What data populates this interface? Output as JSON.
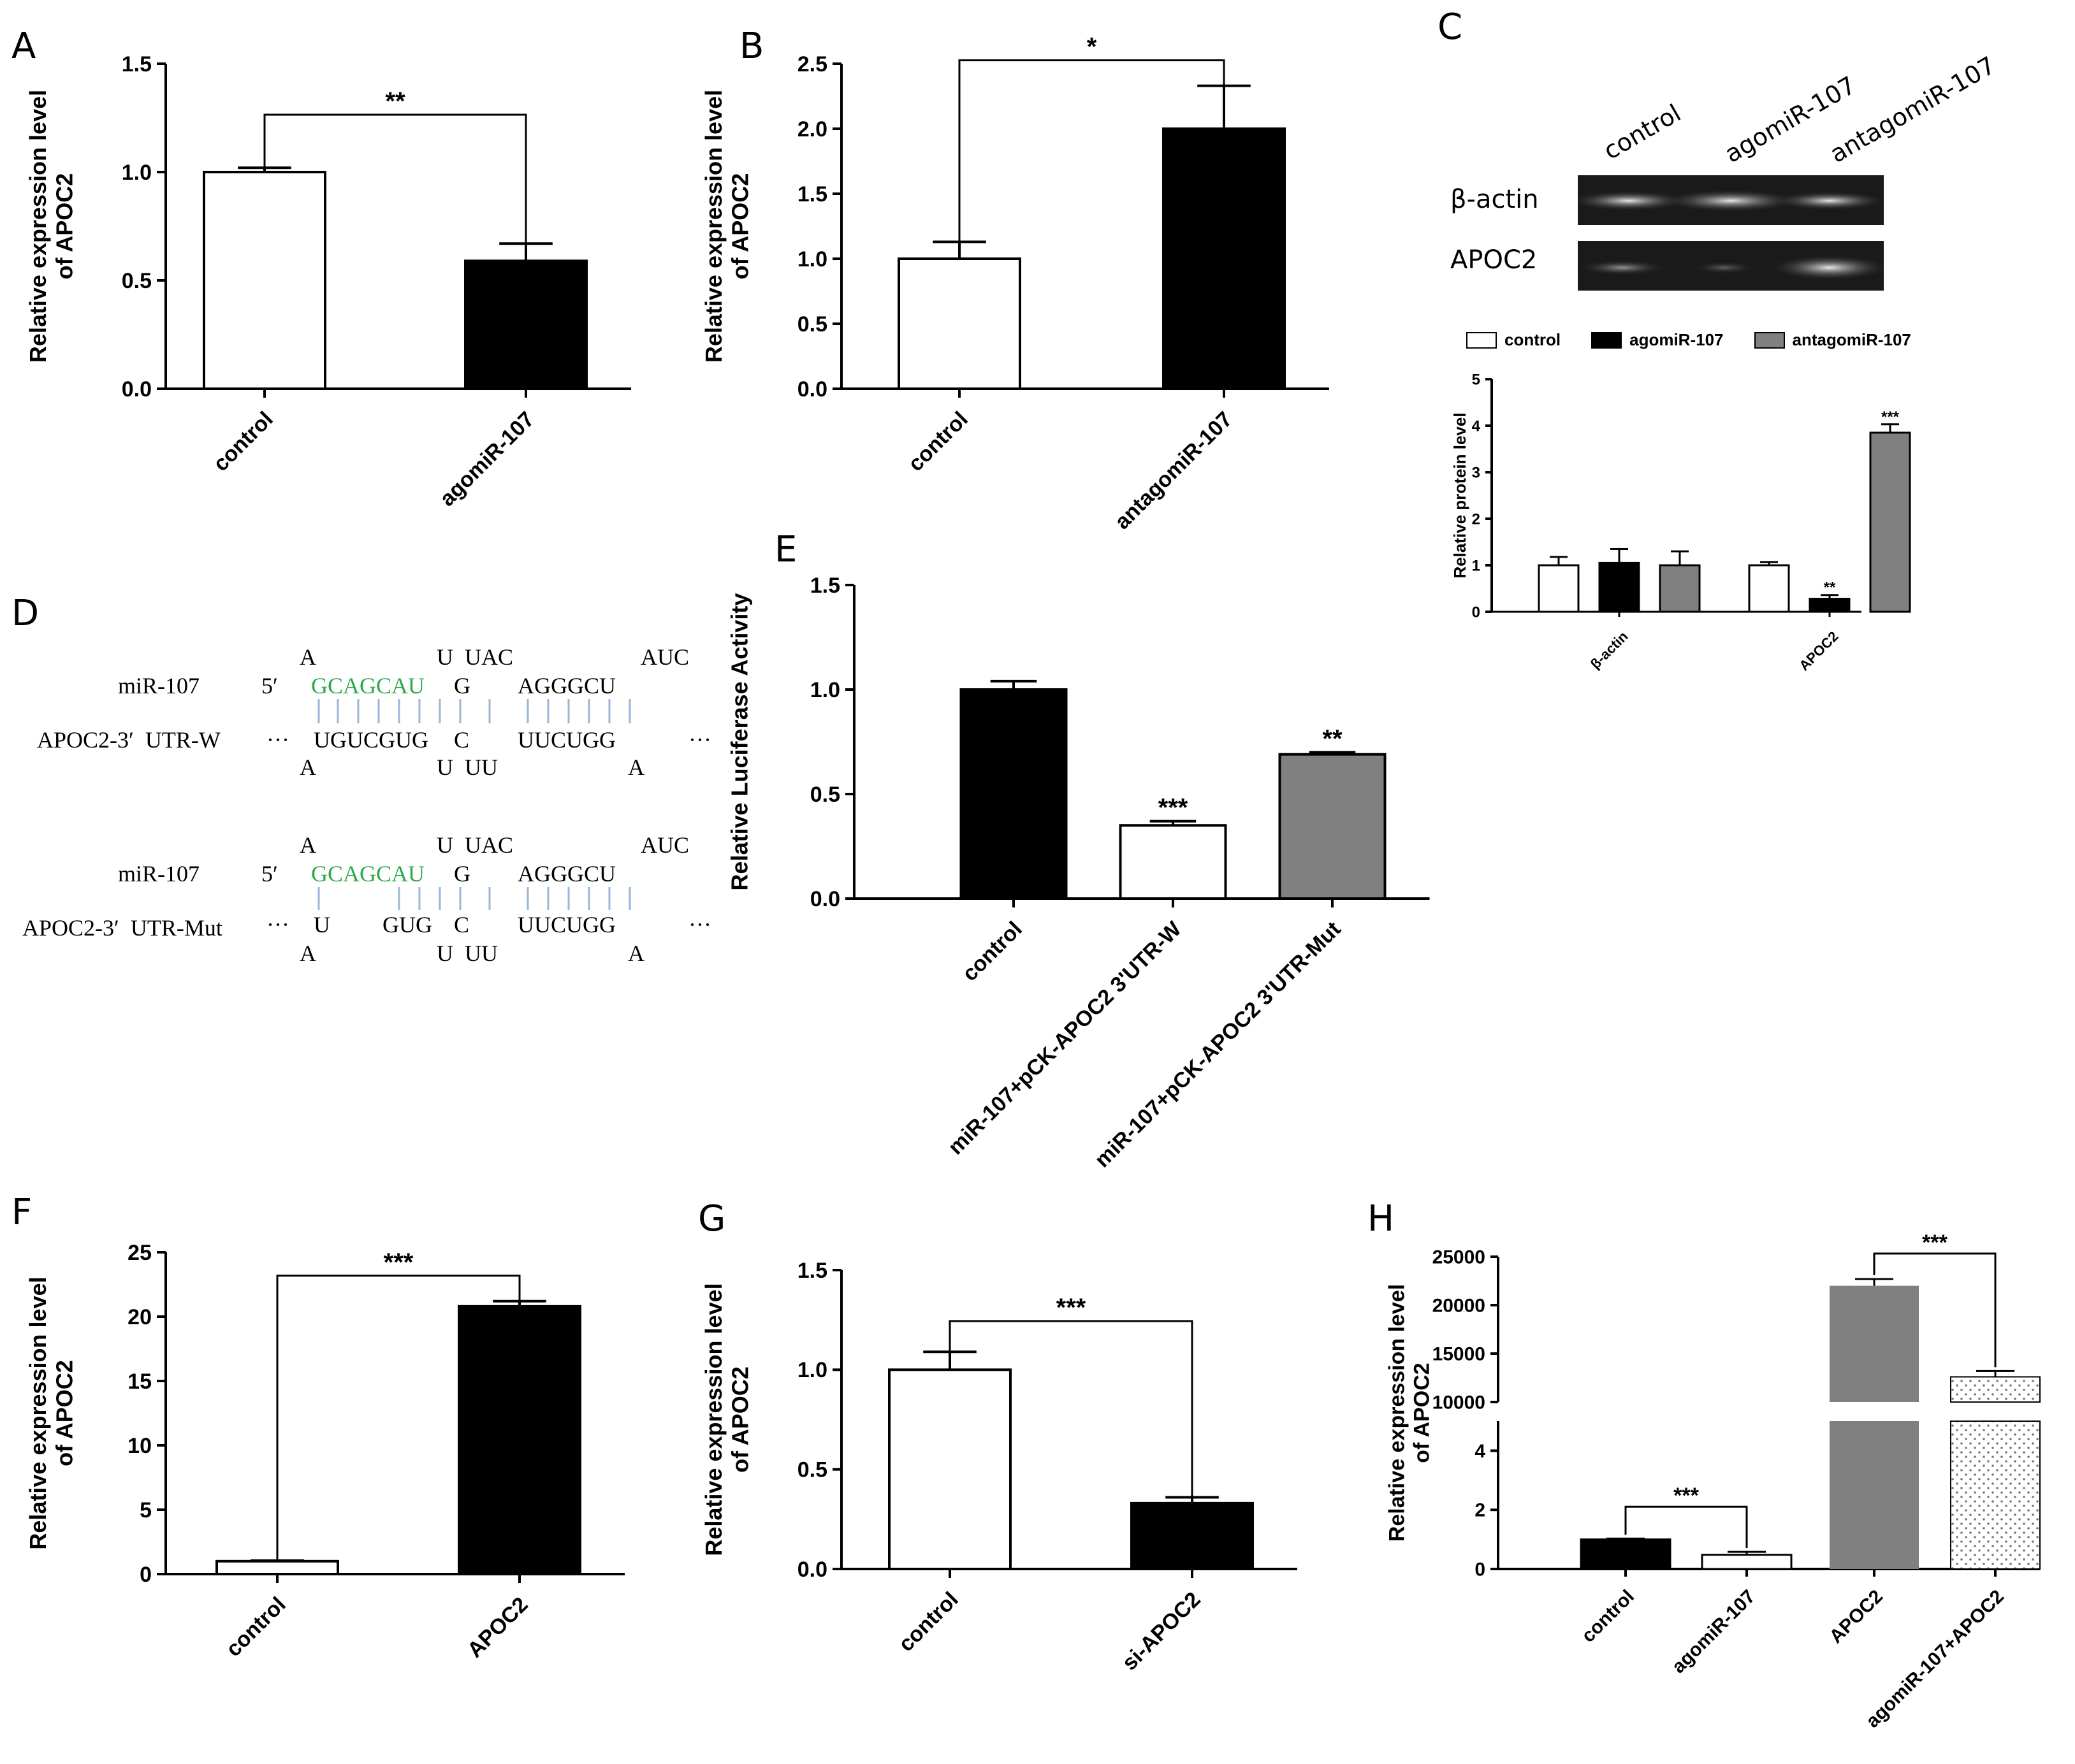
{
  "panel_labels": {
    "A": "A",
    "B": "B",
    "C": "C",
    "D": "D",
    "E": "E",
    "F": "F",
    "G": "G",
    "H": "H"
  },
  "colors": {
    "black": "#000000",
    "white": "#ffffff",
    "gray": "#808080",
    "seq_green": "#2aaa4a",
    "pair_blue": "#9ab6d8"
  },
  "blot": {
    "lanes": [
      "control",
      "agomiR-107",
      "antagomiR-107"
    ],
    "rows": [
      "β-actin",
      "APOC2"
    ]
  },
  "sequences": {
    "w": {
      "mir_label": "miR-107",
      "utr_label": "APOC2-3′  UTR-W",
      "five_prime": "5′",
      "top_bulge_1": "A",
      "top_bulge_2": "U  UAC",
      "top_bulge_3": "AUC",
      "mir_seed": "GCAGCAU",
      "mir_rest_1": "G",
      "mir_rest_2": "AGGGCU",
      "utr_1": "UGUCGUG",
      "utr_2": "C",
      "utr_3": "UUCUGG",
      "ellipsis_left": "···",
      "ellipsis_right": "···",
      "bot_bulge_1": "A",
      "bot_bulge_2": "U  UU",
      "bot_bulge_3": "A"
    },
    "mut": {
      "mir_label": "miR-107",
      "utr_label": "APOC2-3′  UTR-Mut",
      "five_prime": "5′",
      "top_bulge_1": "A",
      "top_bulge_2": "U  UAC",
      "top_bulge_3": "AUC",
      "mir_seed": "GCAGCAU",
      "mir_rest_1": "G",
      "mir_rest_2": "AGGGCU",
      "utr_0": "U",
      "utr_1": "GUG",
      "utr_2": "C",
      "utr_3": "UUCUGG",
      "ellipsis_left": "···",
      "ellipsis_right": "···",
      "bot_bulge_1": "A",
      "bot_bulge_2": "U  UU",
      "bot_bulge_3": "A"
    }
  },
  "chart_data": [
    {
      "id": "A",
      "type": "bar",
      "ylabel": "Relative expression level\nof APOC2",
      "categories": [
        "control",
        "agomiR-107"
      ],
      "values": [
        1.0,
        0.59
      ],
      "errors": [
        0.02,
        0.08
      ],
      "fills": [
        "white",
        "black"
      ],
      "ylim": [
        0,
        1.5
      ],
      "yticks": [
        "0.0",
        "0.5",
        "1.0",
        "1.5"
      ],
      "sig": {
        "from": 0,
        "to": 1,
        "label": "**"
      }
    },
    {
      "id": "B",
      "type": "bar",
      "ylabel": "Relative expression level\nof APOC2",
      "categories": [
        "control",
        "antagomiR-107"
      ],
      "values": [
        1.0,
        2.0
      ],
      "errors": [
        0.13,
        0.33
      ],
      "fills": [
        "white",
        "black"
      ],
      "ylim": [
        0,
        2.5
      ],
      "yticks": [
        "0.0",
        "0.5",
        "1.0",
        "1.5",
        "2.0",
        "2.5"
      ],
      "sig": {
        "from": 0,
        "to": 1,
        "label": "*"
      }
    },
    {
      "id": "C",
      "type": "bar",
      "ylabel": "Relative protein level",
      "groups": [
        "β-actin",
        "APOC2"
      ],
      "series": [
        {
          "name": "control",
          "values": [
            1.0,
            1.0
          ],
          "errors": [
            0.18,
            0.07
          ],
          "fill": "white",
          "marks": [
            "",
            ""
          ]
        },
        {
          "name": "agomiR-107",
          "values": [
            1.05,
            0.28
          ],
          "errors": [
            0.3,
            0.08
          ],
          "fill": "black",
          "marks": [
            "",
            "**"
          ]
        },
        {
          "name": "antagomiR-107",
          "values": [
            1.0,
            3.85
          ],
          "errors": [
            0.3,
            0.18
          ],
          "fill": "gray",
          "marks": [
            "",
            "***"
          ]
        }
      ],
      "ylim": [
        0,
        5
      ],
      "yticks": [
        "0",
        "1",
        "2",
        "3",
        "4",
        "5"
      ]
    },
    {
      "id": "E",
      "type": "bar",
      "ylabel": "Relative Luciferase Activity",
      "categories": [
        "control",
        "miR-107+pCK-APOC2 3'UTR-W",
        "miR-107+pCK-APOC2 3'UTR-Mut"
      ],
      "values": [
        1.0,
        0.35,
        0.69
      ],
      "errors": [
        0.04,
        0.02,
        0.01
      ],
      "fills": [
        "black",
        "white",
        "gray"
      ],
      "marks": [
        "",
        "***",
        "**"
      ],
      "ylim": [
        0,
        1.5
      ],
      "yticks": [
        "0.0",
        "0.5",
        "1.0",
        "1.5"
      ]
    },
    {
      "id": "F",
      "type": "bar",
      "ylabel": "Relative expression level\nof APOC2",
      "categories": [
        "control",
        "APOC2"
      ],
      "values": [
        1.0,
        20.8
      ],
      "errors": [
        0.05,
        0.4
      ],
      "fills": [
        "white",
        "black"
      ],
      "ylim": [
        0,
        25
      ],
      "yticks": [
        "0",
        "5",
        "10",
        "15",
        "20",
        "25"
      ],
      "sig": {
        "from": 0,
        "to": 1,
        "label": "***"
      }
    },
    {
      "id": "G",
      "type": "bar",
      "ylabel": "Relative expression level\nof APOC2",
      "categories": [
        "control",
        "si-APOC2"
      ],
      "values": [
        1.0,
        0.33
      ],
      "errors": [
        0.09,
        0.03
      ],
      "fills": [
        "white",
        "black"
      ],
      "ylim": [
        0,
        1.5
      ],
      "yticks": [
        "0.0",
        "0.5",
        "1.0",
        "1.5"
      ],
      "sig": {
        "from": 0,
        "to": 1,
        "label": "***"
      }
    },
    {
      "id": "H",
      "type": "bar",
      "ylabel": "Relative expression level\nof APOC2",
      "broken_axis": true,
      "categories": [
        "control",
        "agomiR-107",
        "APOC2",
        "agomiR-107+APOC2"
      ],
      "values": [
        1.0,
        0.48,
        22000,
        12600
      ],
      "errors": [
        0.03,
        0.1,
        700,
        600
      ],
      "fills": [
        "black",
        "white",
        "gray",
        "dotted"
      ],
      "lower_ylim": [
        0,
        5
      ],
      "lower_yticks": [
        "0",
        "2",
        "4"
      ],
      "upper_ylim": [
        10000,
        25000
      ],
      "upper_yticks": [
        "10000",
        "15000",
        "20000",
        "25000"
      ],
      "sigs": [
        {
          "from": 0,
          "to": 1,
          "label": "***"
        },
        {
          "from": 2,
          "to": 3,
          "label": "***"
        }
      ]
    }
  ]
}
